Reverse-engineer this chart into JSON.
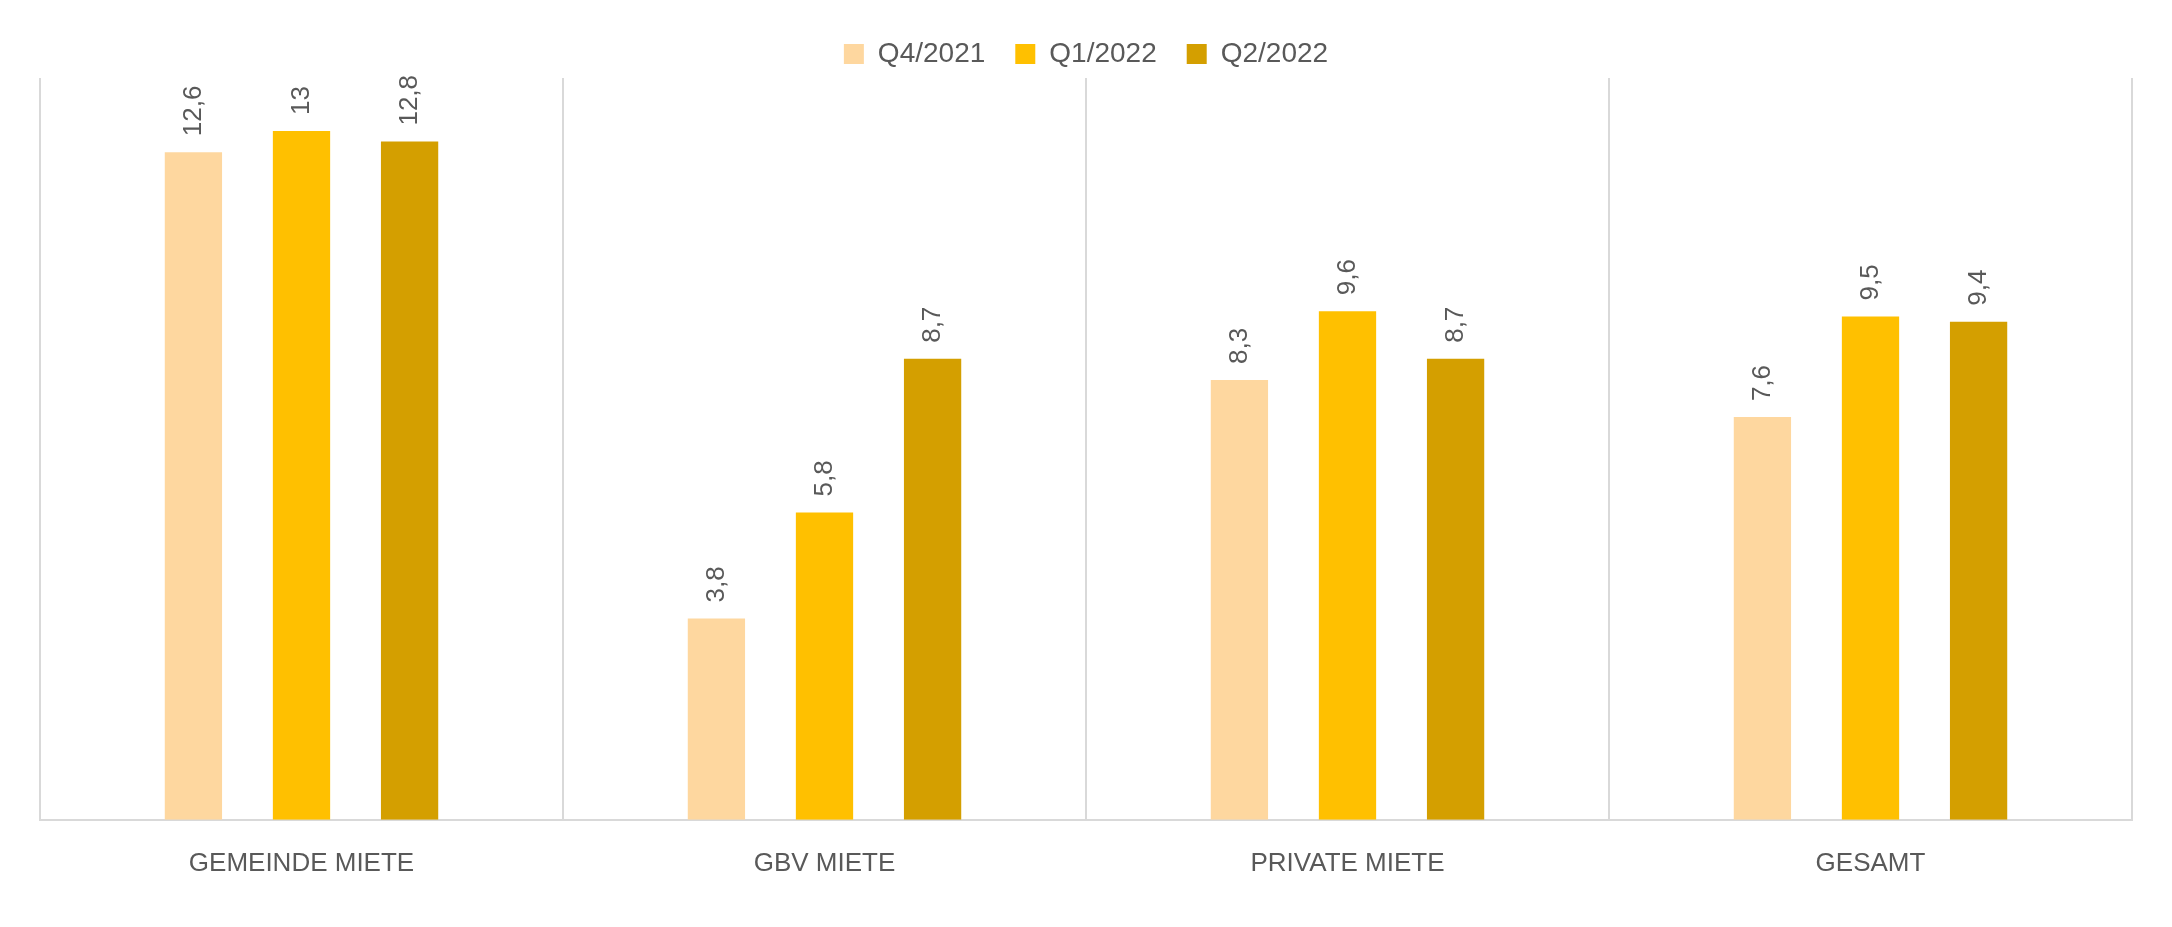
{
  "chart_data": {
    "type": "bar",
    "categories": [
      "GEMEINDE MIETE",
      "GBV MIETE",
      "PRIVATE MIETE",
      "GESAMT"
    ],
    "series": [
      {
        "name": "Q4/2021",
        "color": "#fed79f",
        "values": [
          12.6,
          3.8,
          8.3,
          7.6
        ],
        "value_labels": [
          "12,6",
          "3,8",
          "8,3",
          "7,6"
        ]
      },
      {
        "name": "Q1/2022",
        "color": "#ffc000",
        "values": [
          13,
          5.8,
          9.6,
          9.5
        ],
        "value_labels": [
          "13",
          "5,8",
          "9,6",
          "9,5"
        ]
      },
      {
        "name": "Q2/2022",
        "color": "#d49f00",
        "values": [
          12.8,
          8.7,
          8.7,
          9.4
        ],
        "value_labels": [
          "12,8",
          "8,7",
          "8,7",
          "9,4"
        ]
      }
    ],
    "ylim": [
      0,
      14
    ],
    "tick_labels": "x",
    "grid": "x",
    "legend": "top"
  }
}
